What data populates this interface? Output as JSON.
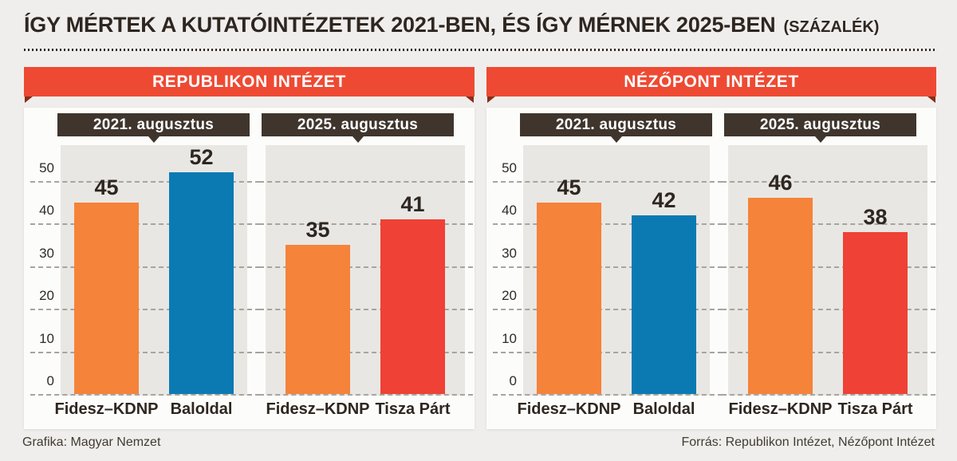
{
  "title": "ÍGY MÉRTEK A KUTATÓINTÉZETEK 2021-BEN, ÉS ÍGY MÉRNEK 2025-BEN",
  "title_unit": "(SZÁZALÉK)",
  "footer": {
    "credit": "Grafika: Magyar Nemzet",
    "source": "Forrás: Republikon Intézet, Nézőpont Intézet"
  },
  "colors": {
    "orange": "#f5833a",
    "blue": "#0b7ab3",
    "red": "#ef4135",
    "ribbon": "#ee4a33",
    "ribbon_fold": "#8a2c18",
    "period_box": "#3f352d",
    "plot_bg": "#e9e7e3",
    "grid": "#a7a49e",
    "text_dark": "#2e2620"
  },
  "chart_data": {
    "type": "bar",
    "unit": "percent",
    "ylim": [
      0,
      58
    ],
    "yticks": [
      0,
      10,
      20,
      30,
      40,
      50
    ],
    "grid": "dashed",
    "panels": [
      {
        "institute": "REPUBLIKON INTÉZET",
        "charts": [
          {
            "period": "2021. augusztus",
            "show_axis": true,
            "bars": [
              {
                "label": "Fidesz–KDNP",
                "value": 45,
                "color": "orange"
              },
              {
                "label": "Baloldal",
                "value": 52,
                "color": "blue"
              }
            ]
          },
          {
            "period": "2025. augusztus",
            "show_axis": false,
            "bars": [
              {
                "label": "Fidesz–KDNP",
                "value": 35,
                "color": "orange"
              },
              {
                "label": "Tisza Párt",
                "value": 41,
                "color": "red"
              }
            ]
          }
        ]
      },
      {
        "institute": "NÉZŐPONT INTÉZET",
        "charts": [
          {
            "period": "2021. augusztus",
            "show_axis": true,
            "bars": [
              {
                "label": "Fidesz–KDNP",
                "value": 45,
                "color": "orange"
              },
              {
                "label": "Baloldal",
                "value": 42,
                "color": "blue"
              }
            ]
          },
          {
            "period": "2025. augusztus",
            "show_axis": false,
            "bars": [
              {
                "label": "Fidesz–KDNP",
                "value": 46,
                "color": "orange"
              },
              {
                "label": "Tisza Párt",
                "value": 38,
                "color": "red"
              }
            ]
          }
        ]
      }
    ]
  }
}
